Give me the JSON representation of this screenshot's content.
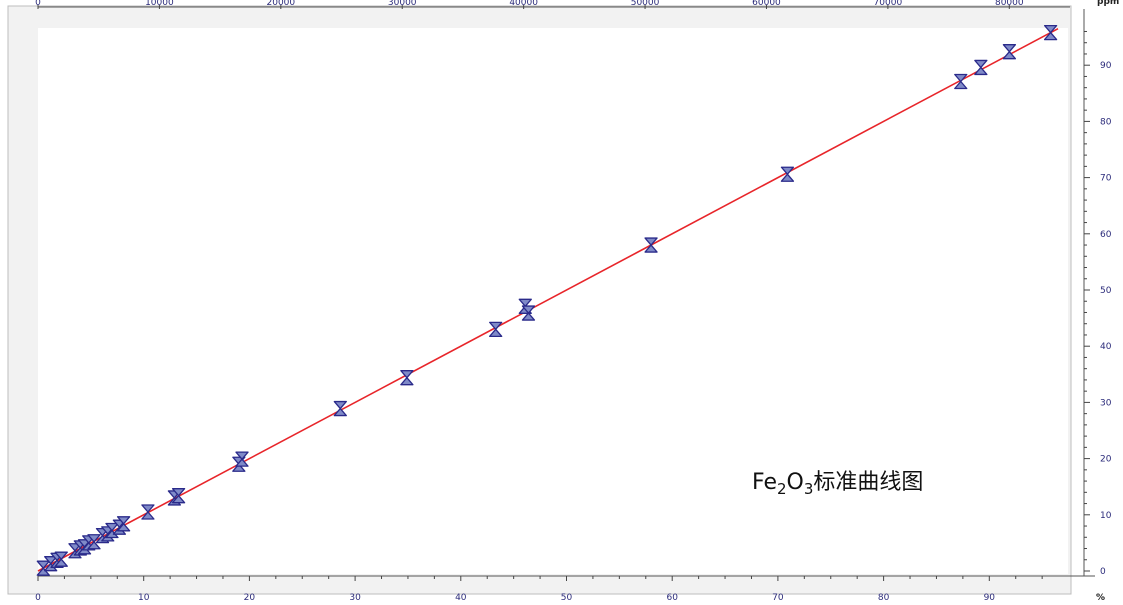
{
  "chart_data": {
    "type": "scatter",
    "title": {
      "prefix": "Fe",
      "sub1": "2",
      "mid": "O",
      "sub2": "3",
      "suffix": "标准曲线图"
    },
    "right_unit": "ppm",
    "bottom_unit": "%",
    "xlim": [
      0,
      100
    ],
    "ylim": [
      0,
      100
    ],
    "top_xlim": [
      0,
      85000
    ],
    "x_ticks": [
      0,
      10,
      20,
      30,
      40,
      50,
      60,
      70,
      80,
      90
    ],
    "y_ticks": [
      0,
      10,
      20,
      30,
      40,
      50,
      60,
      70,
      80,
      90
    ],
    "top_ticks": [
      0,
      10000,
      20000,
      30000,
      40000,
      50000,
      60000,
      70000,
      80000
    ],
    "fit_line": {
      "slope": 1.0,
      "intercept": 0.0,
      "color": "#e8252a"
    },
    "marker_color": "#2a2a8a",
    "marker_fill": "#7f8ac8",
    "points": [
      {
        "x": 0.5,
        "y": 0.5
      },
      {
        "x": 1.2,
        "y": 1.3
      },
      {
        "x": 1.8,
        "y": 1.9
      },
      {
        "x": 2.2,
        "y": 2.1
      },
      {
        "x": 3.5,
        "y": 3.6
      },
      {
        "x": 4.0,
        "y": 4.1
      },
      {
        "x": 4.4,
        "y": 4.3
      },
      {
        "x": 4.8,
        "y": 5.0
      },
      {
        "x": 5.3,
        "y": 5.2
      },
      {
        "x": 6.1,
        "y": 6.3
      },
      {
        "x": 6.6,
        "y": 6.6
      },
      {
        "x": 7.0,
        "y": 7.2
      },
      {
        "x": 7.7,
        "y": 7.8
      },
      {
        "x": 8.1,
        "y": 8.4
      },
      {
        "x": 10.4,
        "y": 10.5
      },
      {
        "x": 12.9,
        "y": 13.0
      },
      {
        "x": 13.3,
        "y": 13.4
      },
      {
        "x": 19.0,
        "y": 19.0
      },
      {
        "x": 19.3,
        "y": 19.9
      },
      {
        "x": 28.6,
        "y": 28.9
      },
      {
        "x": 34.9,
        "y": 34.4
      },
      {
        "x": 43.3,
        "y": 43.0
      },
      {
        "x": 46.1,
        "y": 47.1
      },
      {
        "x": 46.4,
        "y": 45.9
      },
      {
        "x": 58.0,
        "y": 58.0
      },
      {
        "x": 70.9,
        "y": 70.6
      },
      {
        "x": 87.3,
        "y": 87.1
      },
      {
        "x": 89.2,
        "y": 89.6
      },
      {
        "x": 91.9,
        "y": 92.4
      },
      {
        "x": 95.8,
        "y": 95.8
      }
    ]
  }
}
